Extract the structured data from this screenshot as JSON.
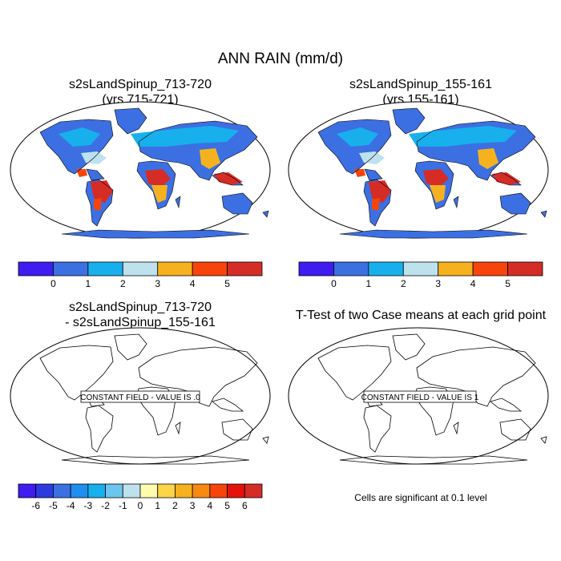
{
  "figure": {
    "title": "ANN RAIN (mm/d)"
  },
  "panels": [
    {
      "id": "case1",
      "title_line1": "s2sLandSpinup_713-720",
      "title_line2": "(yrs 715-721)"
    },
    {
      "id": "case2",
      "title_line1": "s2sLandSpinup_155-161",
      "title_line2": "(yrs 155-161)"
    },
    {
      "id": "difference",
      "title_line1": "s2sLandSpinup_713-720",
      "title_line2": "- s2sLandSpinup_155-161",
      "constant_label": "CONSTANT FIELD - VALUE IS .0"
    },
    {
      "id": "ttest",
      "title_line1": "T-Test of two Case means at each grid point",
      "constant_label": "CONSTANT FIELD - VALUE IS 1"
    }
  ],
  "colorbars": {
    "rain": {
      "colors": [
        "#3f1cf0",
        "#3c6fe2",
        "#17b0ec",
        "#bde2ee",
        "#f6b21e",
        "#f6440a",
        "#d52c26"
      ],
      "tick_labels": [
        "0",
        "1",
        "2",
        "3",
        "4",
        "5"
      ]
    },
    "difference": {
      "colors": [
        "#3f1cf0",
        "#2e3ae0",
        "#3c6fe2",
        "#1e8ff0",
        "#17b0ec",
        "#6cc5ee",
        "#bde2ee",
        "#fffcb0",
        "#fcd449",
        "#f6b21e",
        "#f88a12",
        "#f6440a",
        "#e4120a",
        "#d52c26"
      ],
      "tick_labels": [
        "-6",
        "-5",
        "-4",
        "-3",
        "-2",
        "-1",
        "0",
        "1",
        "2",
        "3",
        "4",
        "5",
        "6"
      ]
    }
  },
  "note": "Cells are significant at 0.1 level",
  "colors": {
    "ocean": "#ffffff",
    "land_dry": "#3c6fe2",
    "land_mid": "#17b0ec",
    "land_wet": "#d52c26",
    "outline": "#000000"
  }
}
